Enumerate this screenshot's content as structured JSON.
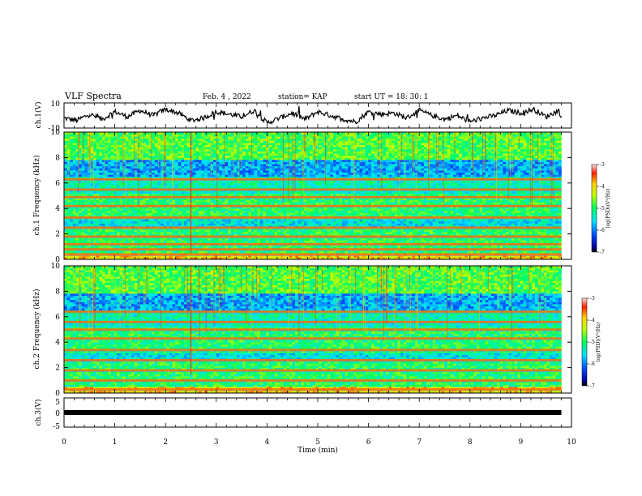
{
  "header": {
    "title": "VLF Spectra",
    "date": "Feb. 4 , 2022",
    "station": "station= KAP",
    "start": "start UT = 18: 30: 1"
  },
  "chart_data": [
    {
      "type": "line",
      "name": "ch1-waveform",
      "ylabel": "ch.1(V)",
      "ylim": [
        -10,
        10
      ],
      "yticks": [
        "10",
        "-10"
      ],
      "xlim": [
        0,
        10
      ],
      "x": [
        0,
        0.25,
        0.5,
        0.75,
        1.0,
        1.25,
        1.5,
        1.75,
        2.0,
        2.25,
        2.5,
        2.75,
        3.0,
        3.25,
        3.5,
        3.75,
        4.0,
        4.25,
        4.5,
        4.75,
        5.0,
        5.25,
        5.5,
        5.75,
        6.0,
        6.25,
        6.5,
        6.75,
        7.0,
        7.25,
        7.5,
        7.75,
        8.0,
        8.25,
        8.5,
        8.75,
        9.0,
        9.25,
        9.5,
        9.75,
        9.8
      ],
      "y": [
        -2,
        -4,
        1,
        -3,
        3,
        -1,
        4,
        0,
        5,
        2,
        -4,
        -2,
        3,
        1,
        -1,
        4,
        -6,
        -2,
        2,
        -3,
        3,
        0,
        -3,
        -5,
        3,
        1,
        2,
        -2,
        4,
        0,
        -3,
        0,
        -5,
        -2,
        0,
        4,
        2,
        5,
        -1,
        4,
        -1
      ]
    },
    {
      "type": "heatmap",
      "name": "ch1-spectrogram",
      "ylabel": "ch.1 Frequency (kHz)",
      "yticks": [
        "0",
        "2",
        "4",
        "6",
        "8",
        "10"
      ],
      "ylim": [
        0,
        10
      ],
      "xlim": [
        0,
        10
      ],
      "colorbar_label": "log(PSD)(V²/Hz)",
      "colorbar_ticks": [
        "-3",
        "-4",
        "-5",
        "-6",
        "-7"
      ],
      "clim": [
        -7,
        -3
      ],
      "bands_khz": [
        0.4,
        0.8,
        1.2,
        1.8,
        2.5,
        3.3,
        4.2,
        4.9,
        5.5,
        6.3
      ]
    },
    {
      "type": "heatmap",
      "name": "ch2-spectrogram",
      "ylabel": "ch.2 Frequency (kHz)",
      "yticks": [
        "0",
        "2",
        "4",
        "6",
        "8",
        "10"
      ],
      "ylim": [
        0,
        10
      ],
      "xlim": [
        0,
        10
      ],
      "colorbar_label": "log(PSD)(V²/Hz)",
      "colorbar_ticks": [
        "-3",
        "-4",
        "-5",
        "-6",
        "-7"
      ],
      "clim": [
        -7,
        -3
      ],
      "bands_khz": [
        0.3,
        1.0,
        1.8,
        2.6,
        3.4,
        4.3,
        5.0,
        5.6,
        6.4
      ]
    },
    {
      "type": "line",
      "name": "ch3-waveform",
      "ylabel": "ch.3(V)",
      "ylim": [
        -5,
        5
      ],
      "yticks": [
        "5",
        "0",
        "-5"
      ],
      "xlim": [
        0,
        10
      ],
      "x": [
        0,
        9.8
      ],
      "y": [
        0,
        0
      ]
    }
  ],
  "xaxis": {
    "label": "Time (min)",
    "ticks": [
      "0",
      "1",
      "2",
      "3",
      "4",
      "5",
      "6",
      "7",
      "8",
      "9",
      "10"
    ]
  }
}
